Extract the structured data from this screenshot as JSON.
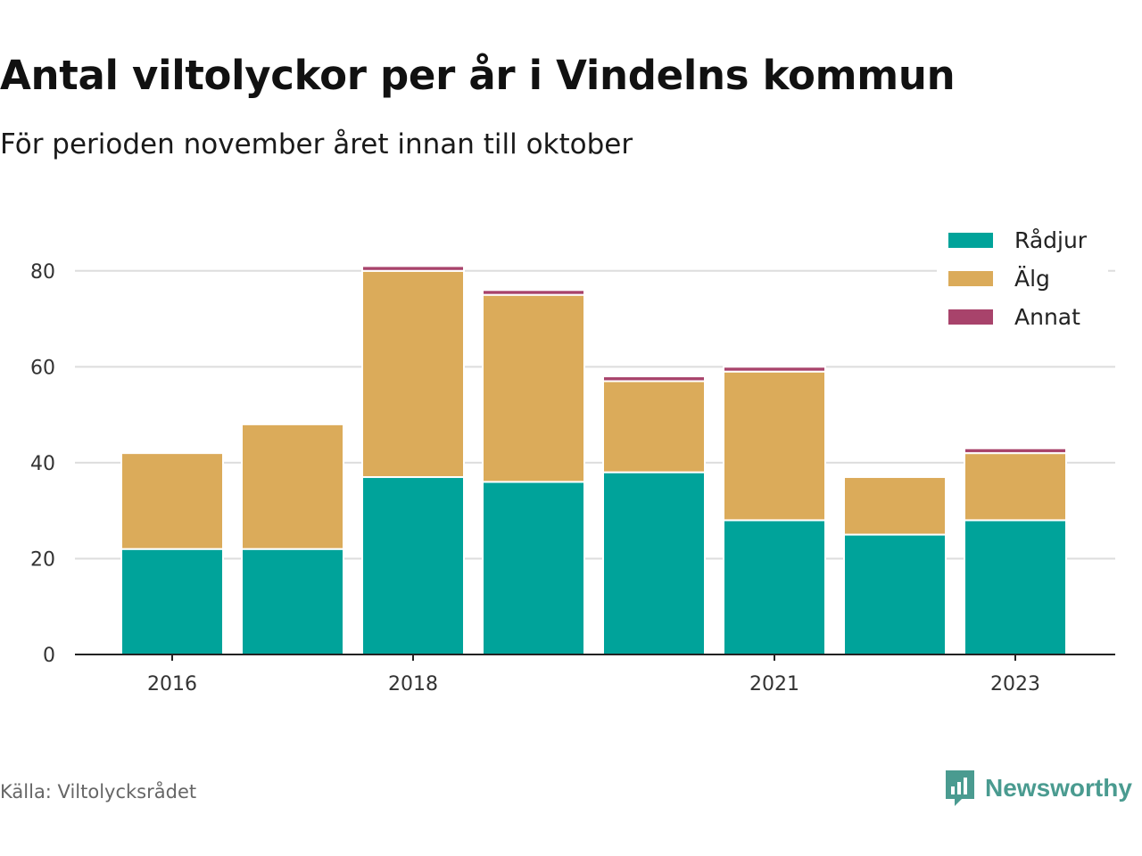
{
  "title": "Antal viltolyckor per år i Vindelns kommun",
  "subtitle": "För perioden november året innan till oktober",
  "source": "Källa: Viltolycksrådet",
  "brand": {
    "name": "Newsworthy",
    "icon": "newsworthy-logo-icon",
    "color": "#4a9b90"
  },
  "chart_data": {
    "type": "bar",
    "stacked": true,
    "x": [
      2016,
      2017,
      2018,
      2019,
      2020,
      2021,
      2022,
      2023
    ],
    "x_tick_labels": [
      "2016",
      "",
      "2018",
      "",
      "",
      "2021",
      "",
      "2023"
    ],
    "series": [
      {
        "name": "Rådjur",
        "color": "#00a39a",
        "values": [
          22,
          22,
          37,
          36,
          38,
          28,
          25,
          28
        ]
      },
      {
        "name": "Älg",
        "color": "#dbab5a",
        "values": [
          20,
          26,
          43,
          39,
          19,
          31,
          12,
          14
        ]
      },
      {
        "name": "Annat",
        "color": "#a8436b",
        "values": [
          0,
          0,
          1,
          1,
          1,
          1,
          0,
          1
        ]
      }
    ],
    "y_ticks": [
      0,
      20,
      40,
      60,
      80
    ],
    "ylim": [
      0,
      90
    ],
    "grid": true,
    "legend_position": "top-right"
  }
}
